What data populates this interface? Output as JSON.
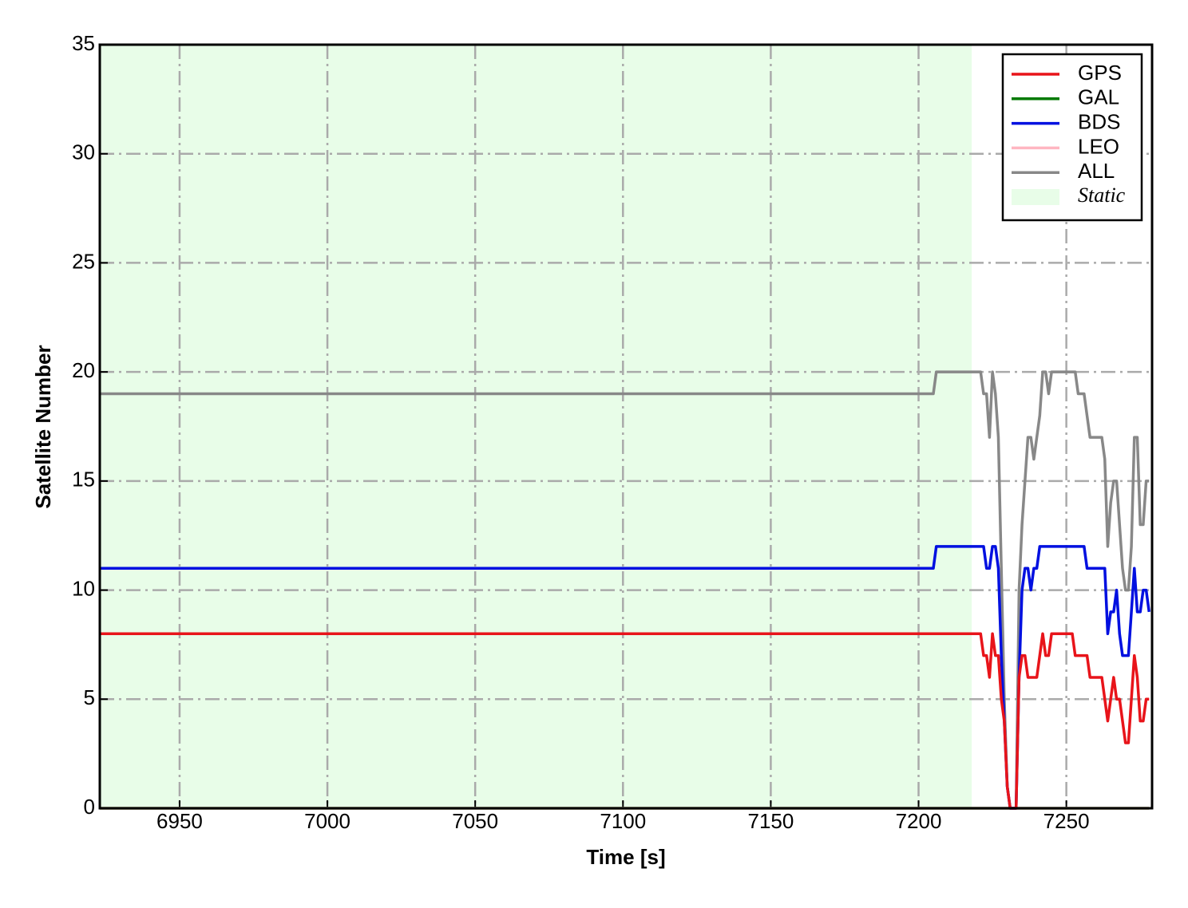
{
  "chart_data": {
    "type": "line",
    "xlabel": "Time [s]",
    "ylabel": "Satellite Number",
    "xlim": [
      6923,
      7279
    ],
    "ylim": [
      0,
      35
    ],
    "xticks": [
      6950,
      7000,
      7050,
      7100,
      7150,
      7200,
      7250
    ],
    "yticks": [
      0,
      5,
      10,
      15,
      20,
      25,
      30,
      35
    ],
    "grid": true,
    "legend": "upper right",
    "static_span": {
      "label": "Static",
      "start": 6923,
      "end": 7218,
      "color": "#e8fde8"
    },
    "x": [
      6923,
      7205,
      7206,
      7221,
      7222,
      7223,
      7224,
      7225,
      7226,
      7227,
      7228,
      7229,
      7230,
      7231,
      7232,
      7233,
      7234,
      7235,
      7236,
      7237,
      7238,
      7239,
      7240,
      7241,
      7242,
      7243,
      7244,
      7245,
      7246,
      7247,
      7248,
      7249,
      7250,
      7251,
      7252,
      7253,
      7254,
      7255,
      7256,
      7257,
      7258,
      7259,
      7260,
      7261,
      7262,
      7263,
      7264,
      7265,
      7266,
      7267,
      7268,
      7269,
      7270,
      7271,
      7272,
      7273,
      7274,
      7275,
      7276,
      7277,
      7278
    ],
    "series": [
      {
        "name": "GPS",
        "color": "#e8141a",
        "values": [
          8,
          8,
          8,
          8,
          7,
          7,
          6,
          8,
          7,
          7,
          5,
          4,
          1,
          0,
          0,
          0,
          6,
          7,
          7,
          6,
          6,
          6,
          6,
          7,
          8,
          7,
          7,
          8,
          8,
          8,
          8,
          8,
          8,
          8,
          8,
          7,
          7,
          7,
          7,
          7,
          6,
          6,
          6,
          6,
          6,
          5,
          4,
          5,
          6,
          5,
          5,
          4,
          3,
          3,
          5,
          7,
          6,
          4,
          4,
          5,
          5
        ]
      },
      {
        "name": "GAL",
        "color": "#007a00",
        "values": [
          0,
          0,
          0,
          0,
          0,
          0,
          0,
          0,
          0,
          0,
          0,
          0,
          0,
          0,
          0,
          0,
          0,
          0,
          0,
          0,
          0,
          0,
          0,
          0,
          0,
          0,
          0,
          0,
          0,
          0,
          0,
          0,
          0,
          0,
          0,
          0,
          0,
          0,
          0,
          0,
          0,
          0,
          0,
          0,
          0,
          0,
          0,
          0,
          0,
          0,
          0,
          0,
          0,
          0,
          0,
          0,
          0,
          0,
          0,
          0,
          0
        ]
      },
      {
        "name": "BDS",
        "color": "#0010e0",
        "values": [
          11,
          11,
          12,
          12,
          12,
          11,
          11,
          12,
          12,
          11,
          7,
          4,
          1,
          0,
          0,
          0,
          6,
          10,
          11,
          11,
          10,
          11,
          11,
          12,
          12,
          12,
          12,
          12,
          12,
          12,
          12,
          12,
          12,
          12,
          12,
          12,
          12,
          12,
          12,
          11,
          11,
          11,
          11,
          11,
          11,
          11,
          8,
          9,
          9,
          10,
          8,
          7,
          7,
          7,
          9,
          11,
          9,
          9,
          10,
          10,
          9
        ]
      },
      {
        "name": "LEO",
        "color": "#ffb6c1",
        "values": [
          0,
          0,
          0,
          0,
          0,
          0,
          0,
          0,
          0,
          0,
          0,
          0,
          0,
          0,
          0,
          0,
          0,
          0,
          0,
          0,
          0,
          0,
          0,
          0,
          0,
          0,
          0,
          0,
          0,
          0,
          0,
          0,
          0,
          0,
          0,
          0,
          0,
          0,
          0,
          0,
          0,
          0,
          0,
          0,
          0,
          0,
          0,
          0,
          0,
          0,
          0,
          0,
          0,
          0,
          0,
          0,
          0,
          0,
          0,
          0,
          0
        ]
      },
      {
        "name": "ALL",
        "color": "#888888",
        "values": [
          19,
          19,
          20,
          20,
          19,
          19,
          17,
          20,
          19,
          17,
          11,
          5,
          1,
          0,
          0,
          0,
          10,
          13,
          15,
          17,
          17,
          16,
          17,
          18,
          20,
          20,
          19,
          20,
          20,
          20,
          20,
          20,
          20,
          20,
          20,
          20,
          19,
          19,
          19,
          18,
          17,
          17,
          17,
          17,
          17,
          16,
          12,
          14,
          15,
          15,
          13,
          11,
          10,
          10,
          12,
          17,
          17,
          13,
          13,
          15,
          15
        ]
      }
    ]
  }
}
